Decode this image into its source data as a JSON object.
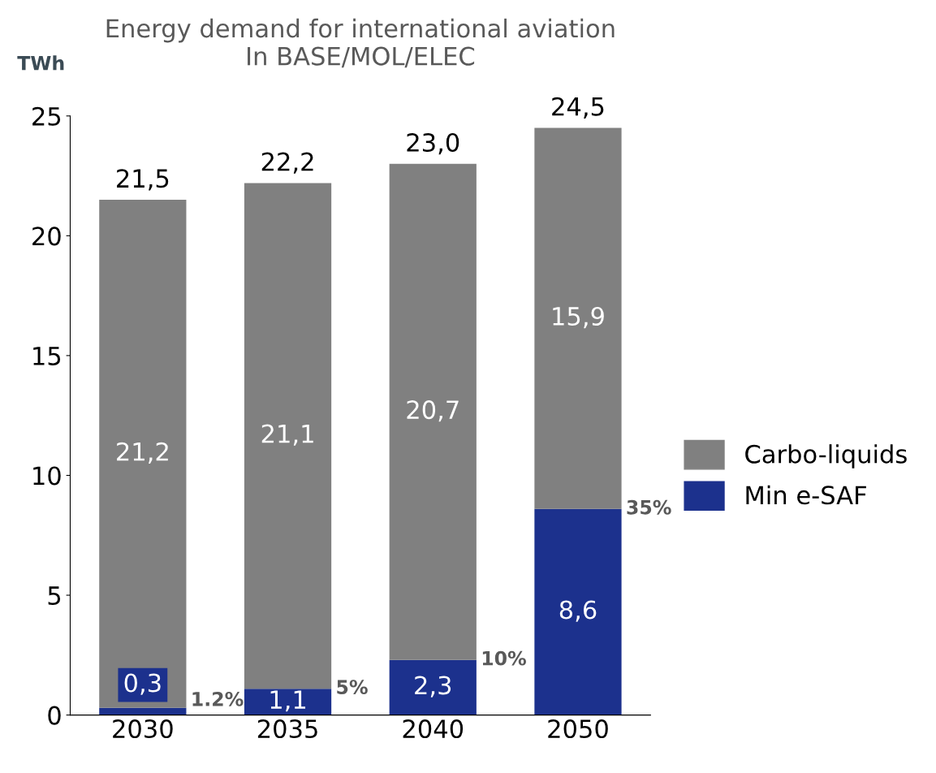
{
  "chart_data": {
    "type": "bar",
    "stacked": true,
    "title": "Energy demand for international aviation\nIn BASE/MOL/ELEC",
    "ylabel": "TWh",
    "categories": [
      "2030",
      "2035",
      "2040",
      "2050"
    ],
    "series": [
      {
        "name": "Min e-SAF",
        "color": "#1c318d",
        "values": [
          0.3,
          1.1,
          2.3,
          8.6
        ],
        "value_labels": [
          "0,3",
          "1,1",
          "2,3",
          "8,6"
        ]
      },
      {
        "name": "Carbo-liquids",
        "color": "#808080",
        "values": [
          21.2,
          21.1,
          20.7,
          15.9
        ],
        "value_labels": [
          "21,2",
          "21,1",
          "20,7",
          "15,9"
        ]
      }
    ],
    "totals": [
      "21,5",
      "22,2",
      "23,0",
      "24,5"
    ],
    "annotations": [
      {
        "text": "1.2%",
        "x": "2030",
        "y": 0.3
      },
      {
        "text": "5%",
        "x": "2035",
        "y": 1.1
      },
      {
        "text": "10%",
        "x": "2040",
        "y": 2.3
      },
      {
        "text": "35%",
        "x": "2050",
        "y": 8.6
      }
    ],
    "ylim": [
      0,
      25
    ],
    "yticks": [
      0,
      5,
      10,
      15,
      20,
      25
    ],
    "grid": false,
    "legend": "right"
  }
}
